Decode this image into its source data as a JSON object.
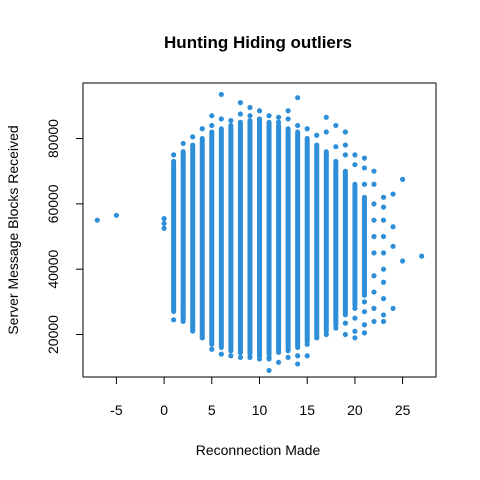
{
  "chart_data": {
    "type": "scatter",
    "title": "Hunting Hiding outliers",
    "xlabel": "Reconnection Made",
    "ylabel": "Server Message Blocks Received",
    "xlim": [
      -8.5,
      28.5
    ],
    "ylim": [
      7000,
      97000
    ],
    "x_ticks": [
      -5,
      0,
      5,
      10,
      15,
      20,
      25
    ],
    "x_tick_labels": [
      "-5",
      "0",
      "5",
      "10",
      "15",
      "20",
      "25"
    ],
    "y_ticks": [
      20000,
      40000,
      60000,
      80000
    ],
    "y_tick_labels": [
      "20000",
      "40000",
      "60000",
      "80000"
    ],
    "grid": false,
    "point_color": "#2E8FD8",
    "column_ranges": [
      {
        "x": 1,
        "ymin": 27000,
        "ymax": 73000
      },
      {
        "x": 2,
        "ymin": 24000,
        "ymax": 76000
      },
      {
        "x": 3,
        "ymin": 21000,
        "ymax": 78000
      },
      {
        "x": 4,
        "ymin": 19000,
        "ymax": 80000
      },
      {
        "x": 5,
        "ymin": 17000,
        "ymax": 82000
      },
      {
        "x": 6,
        "ymin": 16000,
        "ymax": 83000
      },
      {
        "x": 7,
        "ymin": 15000,
        "ymax": 84000
      },
      {
        "x": 8,
        "ymin": 14500,
        "ymax": 85000
      },
      {
        "x": 9,
        "ymin": 14000,
        "ymax": 85500
      },
      {
        "x": 10,
        "ymin": 14000,
        "ymax": 85500
      },
      {
        "x": 11,
        "ymin": 14000,
        "ymax": 85000
      },
      {
        "x": 12,
        "ymin": 14500,
        "ymax": 84000
      },
      {
        "x": 13,
        "ymin": 15000,
        "ymax": 83000
      },
      {
        "x": 14,
        "ymin": 16000,
        "ymax": 82000
      },
      {
        "x": 15,
        "ymin": 18000,
        "ymax": 80000
      },
      {
        "x": 16,
        "ymin": 19000,
        "ymax": 78000
      },
      {
        "x": 17,
        "ymin": 21000,
        "ymax": 76000
      },
      {
        "x": 18,
        "ymin": 23000,
        "ymax": 73000
      },
      {
        "x": 19,
        "ymin": 26000,
        "ymax": 70000
      },
      {
        "x": 20,
        "ymin": 29000,
        "ymax": 66000
      },
      {
        "x": 21,
        "ymin": 32000,
        "ymax": 62000
      }
    ],
    "points": [
      [
        -7,
        55000
      ],
      [
        -5,
        56500
      ],
      [
        0,
        52500
      ],
      [
        0,
        54000
      ],
      [
        0,
        55500
      ],
      [
        1,
        75000
      ],
      [
        1,
        24500
      ],
      [
        2,
        78500
      ],
      [
        2,
        26500
      ],
      [
        2,
        29000
      ],
      [
        3,
        80500
      ],
      [
        3,
        22000
      ],
      [
        4,
        83000
      ],
      [
        4,
        19000
      ],
      [
        5,
        87000
      ],
      [
        5,
        84000
      ],
      [
        5,
        15500
      ],
      [
        6,
        93500
      ],
      [
        6,
        86000
      ],
      [
        6,
        14000
      ],
      [
        7,
        85500
      ],
      [
        7,
        13500
      ],
      [
        8,
        91000
      ],
      [
        8,
        87500
      ],
      [
        8,
        13000
      ],
      [
        8,
        14500
      ],
      [
        9,
        89500
      ],
      [
        9,
        87000
      ],
      [
        9,
        13000
      ],
      [
        10,
        88500
      ],
      [
        10,
        86000
      ],
      [
        10,
        12500
      ],
      [
        10,
        13500
      ],
      [
        11,
        87000
      ],
      [
        11,
        9000
      ],
      [
        11,
        13000
      ],
      [
        11,
        12500
      ],
      [
        12,
        85000
      ],
      [
        12,
        86500
      ],
      [
        12,
        11500
      ],
      [
        13,
        88500
      ],
      [
        13,
        86000
      ],
      [
        13,
        13000
      ],
      [
        14,
        92500
      ],
      [
        14,
        84000
      ],
      [
        14,
        11000
      ],
      [
        14,
        13500
      ],
      [
        15,
        83000
      ],
      [
        15,
        13500
      ],
      [
        15,
        17000
      ],
      [
        16,
        81000
      ],
      [
        16,
        19000
      ],
      [
        17,
        86500
      ],
      [
        17,
        82000
      ],
      [
        17,
        20000
      ],
      [
        18,
        84000
      ],
      [
        18,
        77500
      ],
      [
        18,
        22000
      ],
      [
        19,
        82000
      ],
      [
        19,
        78000
      ],
      [
        19,
        75000
      ],
      [
        19,
        23500
      ],
      [
        19,
        20000
      ],
      [
        20,
        75000
      ],
      [
        20,
        72000
      ],
      [
        20,
        28000
      ],
      [
        20,
        25000
      ],
      [
        20,
        21000
      ],
      [
        20,
        19000
      ],
      [
        21,
        74000
      ],
      [
        21,
        71000
      ],
      [
        21,
        66000
      ],
      [
        21,
        30000
      ],
      [
        21,
        27000
      ],
      [
        21,
        23000
      ],
      [
        21,
        20500
      ],
      [
        22,
        70000
      ],
      [
        22,
        66000
      ],
      [
        22,
        60000
      ],
      [
        22,
        55000
      ],
      [
        22,
        50000
      ],
      [
        22,
        45000
      ],
      [
        22,
        38000
      ],
      [
        22,
        33000
      ],
      [
        22,
        28000
      ],
      [
        22,
        24000
      ],
      [
        23,
        62000
      ],
      [
        23,
        59000
      ],
      [
        23,
        55000
      ],
      [
        23,
        50000
      ],
      [
        23,
        45000
      ],
      [
        23,
        40000
      ],
      [
        23,
        36000
      ],
      [
        23,
        31000
      ],
      [
        23,
        26000
      ],
      [
        23,
        24000
      ],
      [
        24,
        63000
      ],
      [
        24,
        53000
      ],
      [
        24,
        47000
      ],
      [
        24,
        28000
      ],
      [
        25,
        67500
      ],
      [
        25,
        42500
      ],
      [
        27,
        44000
      ]
    ]
  }
}
